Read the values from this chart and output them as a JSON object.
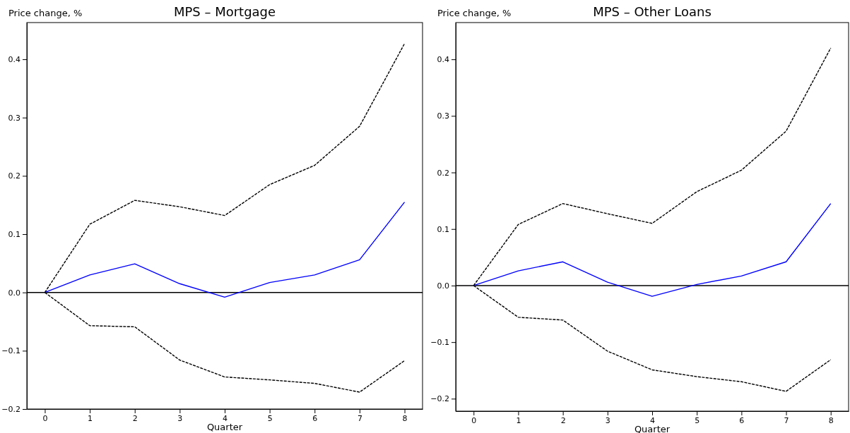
{
  "chart_data": [
    {
      "type": "line",
      "title": "MPS – Mortgage",
      "xlabel": "Quarter",
      "ylabel": "Price change, %",
      "x": [
        0,
        1,
        2,
        3,
        4,
        5,
        6,
        7,
        8
      ],
      "series": [
        {
          "color": "#0000ff",
          "line_style": "solid",
          "values": [
            0,
            0.03,
            0.049,
            0.015,
            -0.008,
            0.017,
            0.03,
            0.056,
            0.155
          ]
        },
        {
          "color": "#000000",
          "line_style": "dashed",
          "values": [
            0,
            0.117,
            0.158,
            0.147,
            0.132,
            0.185,
            0.218,
            0.285,
            0.427
          ]
        },
        {
          "color": "#000000",
          "line_style": "dashed",
          "values": [
            0,
            -0.057,
            -0.059,
            -0.116,
            -0.145,
            -0.15,
            -0.156,
            -0.171,
            -0.117
          ]
        }
      ],
      "xlim": [
        -0.4,
        8.4
      ],
      "xticks": [
        0,
        1,
        2,
        3,
        4,
        5,
        6,
        7,
        8
      ],
      "ylim": [
        -0.2,
        0.463
      ],
      "yticks": [
        {
          "value": -0.2,
          "label": "−0.2"
        },
        {
          "value": -0.1,
          "label": "−0.1"
        },
        {
          "value": 0,
          "label": "0.0"
        },
        {
          "value": 0.1,
          "label": "0.1"
        },
        {
          "value": 0.2,
          "label": "0.2"
        },
        {
          "value": 0.3,
          "label": "0.3"
        },
        {
          "value": 0.4,
          "label": "0.4"
        }
      ],
      "ref_lines": [
        {
          "axis": "y",
          "value": 0,
          "color": "#000000"
        }
      ],
      "grid": false,
      "marker": "none"
    },
    {
      "type": "line",
      "title": "MPS – Other Loans",
      "xlabel": "Quarter",
      "ylabel": "Price change, %",
      "x": [
        0,
        1,
        2,
        3,
        4,
        5,
        6,
        7,
        8
      ],
      "series": [
        {
          "color": "#0000ff",
          "line_style": "solid",
          "values": [
            0,
            0.026,
            0.042,
            0.006,
            -0.019,
            0.002,
            0.017,
            0.042,
            0.145
          ]
        },
        {
          "color": "#000000",
          "line_style": "dashed",
          "values": [
            0,
            0.108,
            0.145,
            0.127,
            0.11,
            0.166,
            0.204,
            0.273,
            0.42
          ]
        },
        {
          "color": "#000000",
          "line_style": "dashed",
          "values": [
            0,
            -0.056,
            -0.061,
            -0.116,
            -0.149,
            -0.161,
            -0.17,
            -0.187,
            -0.131
          ]
        }
      ],
      "xlim": [
        -0.4,
        8.4
      ],
      "xticks": [
        0,
        1,
        2,
        3,
        4,
        5,
        6,
        7,
        8
      ],
      "ylim": [
        -0.222,
        0.465
      ],
      "yticks": [
        {
          "value": -0.2,
          "label": "−0.2"
        },
        {
          "value": -0.1,
          "label": "−0.1"
        },
        {
          "value": 0,
          "label": "0.0"
        },
        {
          "value": 0.1,
          "label": "0.1"
        },
        {
          "value": 0.2,
          "label": "0.2"
        },
        {
          "value": 0.3,
          "label": "0.3"
        },
        {
          "value": 0.4,
          "label": "0.4"
        }
      ],
      "ref_lines": [
        {
          "axis": "y",
          "value": 0,
          "color": "#000000"
        }
      ],
      "grid": false,
      "marker": "none"
    }
  ]
}
